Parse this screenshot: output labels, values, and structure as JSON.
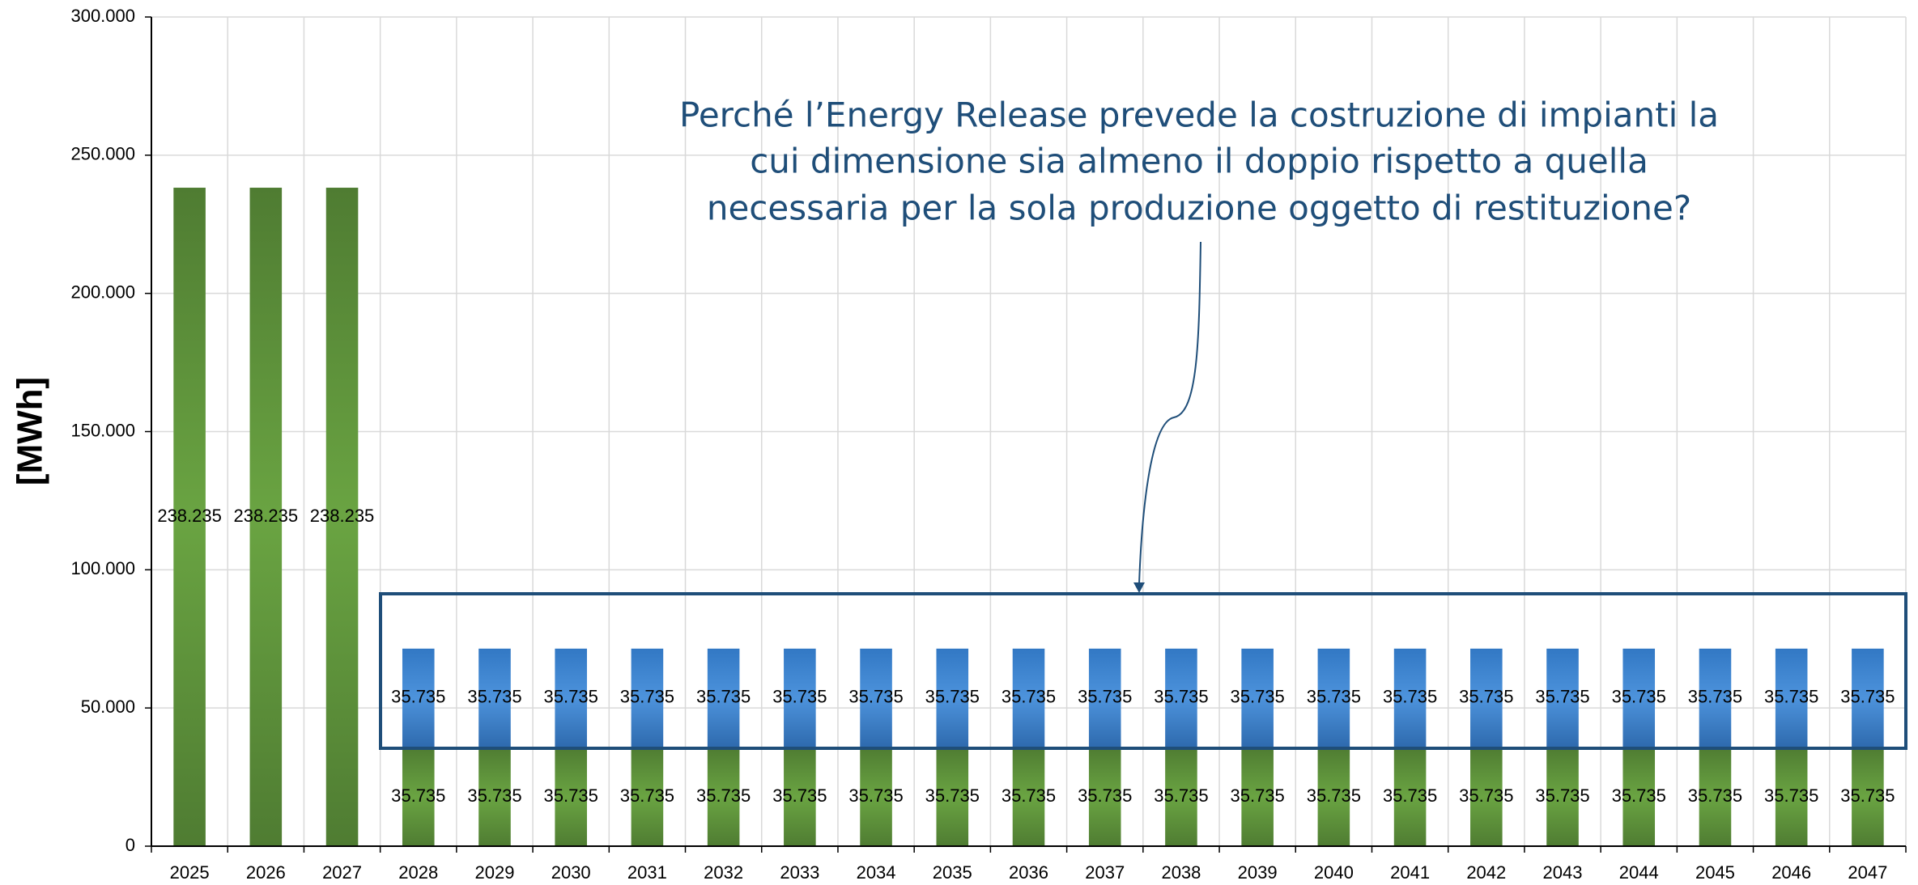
{
  "chart_data": {
    "type": "stacked_bar",
    "y_axis_label": "[MWh]",
    "annotation": [
      "Perché l’Energy Release prevede la costruzione di impianti la",
      "cui dimensione sia almeno il doppio rispetto a quella",
      "necessaria per la sola produzione oggetto di restituzione?"
    ],
    "categories": [
      "2025",
      "2026",
      "2027",
      "2028",
      "2029",
      "2030",
      "2031",
      "2032",
      "2033",
      "2034",
      "2035",
      "2036",
      "2037",
      "2038",
      "2039",
      "2040",
      "2041",
      "2042",
      "2043",
      "2044",
      "2045",
      "2046",
      "2047"
    ],
    "series": [
      {
        "color": "#5a8f37",
        "values": [
          238235,
          238235,
          238235,
          35735,
          35735,
          35735,
          35735,
          35735,
          35735,
          35735,
          35735,
          35735,
          35735,
          35735,
          35735,
          35735,
          35735,
          35735,
          35735,
          35735,
          35735,
          35735,
          35735
        ],
        "value_labels": [
          "238.235",
          "238.235",
          "238.235",
          "35.735",
          "35.735",
          "35.735",
          "35.735",
          "35.735",
          "35.735",
          "35.735",
          "35.735",
          "35.735",
          "35.735",
          "35.735",
          "35.735",
          "35.735",
          "35.735",
          "35.735",
          "35.735",
          "35.735",
          "35.735",
          "35.735",
          "35.735"
        ]
      },
      {
        "color": "#3a80cc",
        "values": [
          null,
          null,
          null,
          35735,
          35735,
          35735,
          35735,
          35735,
          35735,
          35735,
          35735,
          35735,
          35735,
          35735,
          35735,
          35735,
          35735,
          35735,
          35735,
          35735,
          35735,
          35735,
          35735
        ],
        "value_labels": [
          null,
          null,
          null,
          "35.735",
          "35.735",
          "35.735",
          "35.735",
          "35.735",
          "35.735",
          "35.735",
          "35.735",
          "35.735",
          "35.735",
          "35.735",
          "35.735",
          "35.735",
          "35.735",
          "35.735",
          "35.735",
          "35.735",
          "35.735",
          "35.735",
          "35.735"
        ]
      }
    ],
    "ylim": [
      0,
      300000
    ],
    "yticks": [
      0,
      {
        "value": 50000,
        "label": "50.000"
      },
      {
        "value": 100000,
        "label": "100.000"
      },
      {
        "value": 150000,
        "label": "150.000"
      },
      {
        "value": 200000,
        "label": "200.000"
      },
      {
        "value": 250000,
        "label": "250.000"
      },
      {
        "value": 300000,
        "label": "300.000"
      }
    ],
    "grid": true
  }
}
